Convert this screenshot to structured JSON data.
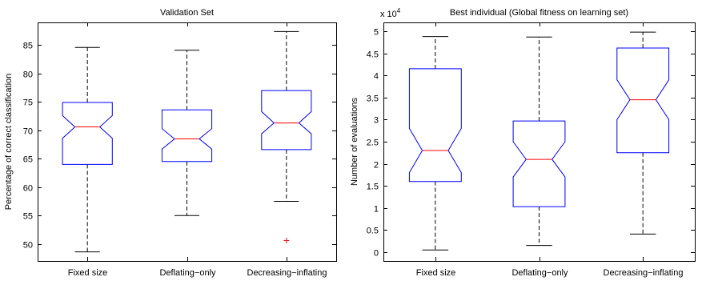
{
  "chart_data": [
    {
      "type": "boxplot",
      "notched": true,
      "title": "Validation Set",
      "ylabel": "Percentage of correct classification",
      "xlabel": "",
      "categories": [
        "Fixed size",
        "Deflating−only",
        "Decreasing−inflating"
      ],
      "ylim": [
        47,
        89
      ],
      "yticks": [
        50,
        55,
        60,
        65,
        70,
        75,
        80,
        85
      ],
      "ytick_labels": [
        "50",
        "55",
        "60",
        "65",
        "70",
        "75",
        "80",
        "85"
      ],
      "y_exponent_label": "",
      "boxes": [
        {
          "whisker_low": 48.6,
          "q1": 64.0,
          "notch_low": 68.6,
          "median": 70.6,
          "notch_high": 72.6,
          "q3": 74.9,
          "whisker_high": 84.6,
          "outliers": []
        },
        {
          "whisker_low": 55.0,
          "q1": 64.5,
          "notch_low": 66.7,
          "median": 68.5,
          "notch_high": 70.3,
          "q3": 73.6,
          "whisker_high": 84.1,
          "outliers": []
        },
        {
          "whisker_low": 57.5,
          "q1": 66.6,
          "notch_low": 69.4,
          "median": 71.3,
          "notch_high": 73.3,
          "q3": 77.0,
          "whisker_high": 87.4,
          "outliers": [
            50.6
          ]
        }
      ],
      "colors": {
        "box": "#0000ff",
        "median": "#ff0000",
        "whisker": "#000000",
        "outlier": "#ff0000"
      },
      "grid": false
    },
    {
      "type": "boxplot",
      "notched": true,
      "title": "Best individual (Global fitness on learning set)",
      "ylabel": "Number of evaluations",
      "xlabel": "",
      "categories": [
        "Fixed size",
        "Deflating−only",
        "Decreasing−inflating"
      ],
      "ylim": [
        -2000,
        52000
      ],
      "yticks": [
        0,
        5000,
        10000,
        15000,
        20000,
        25000,
        30000,
        35000,
        40000,
        45000,
        50000
      ],
      "ytick_labels": [
        "0",
        "0.5",
        "1",
        "1.5",
        "2",
        "2.5",
        "3",
        "3.5",
        "4",
        "4.5",
        "5"
      ],
      "y_exponent_label": "x 10",
      "y_exponent_power": "4",
      "boxes": [
        {
          "whisker_low": 500,
          "q1": 16000,
          "notch_low": 18000,
          "median": 23000,
          "notch_high": 28000,
          "q3": 41500,
          "whisker_high": 48800,
          "outliers": []
        },
        {
          "whisker_low": 1500,
          "q1": 10300,
          "notch_low": 17000,
          "median": 21000,
          "notch_high": 25000,
          "q3": 29700,
          "whisker_high": 48700,
          "outliers": []
        },
        {
          "whisker_low": 4100,
          "q1": 22500,
          "notch_low": 30000,
          "median": 34500,
          "notch_high": 39000,
          "q3": 46200,
          "whisker_high": 49800,
          "outliers": []
        }
      ],
      "colors": {
        "box": "#0000ff",
        "median": "#ff0000",
        "whisker": "#000000",
        "outlier": "#ff0000"
      },
      "grid": false
    }
  ]
}
